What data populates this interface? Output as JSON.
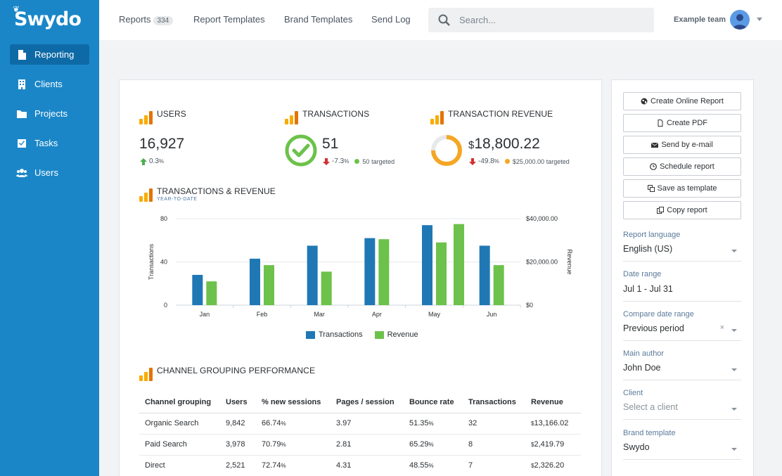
{
  "app": {
    "logo_text": "Swydo"
  },
  "sidebar": {
    "items": [
      {
        "label": "Reporting",
        "icon": "document-icon",
        "active": true
      },
      {
        "label": "Clients",
        "icon": "building-icon"
      },
      {
        "label": "Projects",
        "icon": "folder-icon"
      },
      {
        "label": "Tasks",
        "icon": "checkbox-icon"
      },
      {
        "label": "Users",
        "icon": "users-icon"
      }
    ]
  },
  "topbar": {
    "tabs": [
      {
        "label": "Reports",
        "badge": "334"
      },
      {
        "label": "Report Templates"
      },
      {
        "label": "Brand Templates"
      },
      {
        "label": "Send Log"
      }
    ],
    "search_placeholder": "Search...",
    "team_name": "Example team"
  },
  "kpis": {
    "users": {
      "title": "USERS",
      "value": "16,927",
      "change": "0.3",
      "change_unit": "%"
    },
    "transactions": {
      "title": "TRANSACTIONS",
      "value": "51",
      "change": "-7.3",
      "change_unit": "%",
      "target": "50",
      "target_label": "targeted"
    },
    "revenue": {
      "title": "TRANSACTION REVENUE",
      "currency": "$",
      "value": "18,800.22",
      "change": "-49.8",
      "change_unit": "%",
      "target": "$25,000.00",
      "target_label": "targeted",
      "progress": 0.75
    }
  },
  "colors": {
    "accent": "#1a86c8",
    "transactions": "#1f78b4",
    "revenue": "#6cc24a",
    "up": "#4caf50",
    "down": "#d32f2f",
    "target_dot_green": "#6cc24a",
    "target_dot_orange": "#f5a623"
  },
  "chart_data": {
    "type": "bar",
    "title": "TRANSACTIONS & REVENUE",
    "subtitle": "YEAR-TO-DATE",
    "categories": [
      "Jan",
      "Feb",
      "Mar",
      "Apr",
      "May",
      "Jun"
    ],
    "series": [
      {
        "name": "Transactions",
        "axis": "left",
        "values": [
          28,
          43,
          55,
          62,
          74,
          55
        ]
      },
      {
        "name": "Revenue",
        "axis": "right",
        "values": [
          11000,
          18500,
          15500,
          30500,
          29000,
          18500
        ]
      }
    ],
    "ylabel": "Transactions",
    "ylabel_right": "Revenue",
    "ylim": [
      0,
      80
    ],
    "ylim_right": [
      0,
      40000
    ],
    "yticks": [
      "80",
      "40",
      "0"
    ],
    "yticks_right": [
      "$40,000.00",
      "$20,000.00",
      "$0"
    ],
    "extra_revenue_bars": [
      37500
    ],
    "legend": "bottom",
    "grid": true
  },
  "table": {
    "title": "CHANNEL GROUPING PERFORMANCE",
    "columns": [
      "Channel grouping",
      "Users",
      "% new sessions",
      "Pages / session",
      "Bounce rate",
      "Transactions",
      "Revenue"
    ],
    "rows": [
      {
        "channel": "Organic Search",
        "users": "9,842",
        "new_sessions": "66.74",
        "pages": "3.97",
        "bounce": "51.35",
        "transactions": "32",
        "revenue": "13,166.02"
      },
      {
        "channel": "Paid Search",
        "users": "3,978",
        "new_sessions": "70.79",
        "pages": "2.81",
        "bounce": "65.29",
        "transactions": "8",
        "revenue": "2,419.79"
      },
      {
        "channel": "Direct",
        "users": "2,521",
        "new_sessions": "72.74",
        "pages": "4.31",
        "bounce": "48.55",
        "transactions": "7",
        "revenue": "2,326.20"
      }
    ],
    "pct_unit": "%",
    "currency": "$"
  },
  "panel": {
    "buttons": [
      {
        "label": "Create Online Report",
        "icon": "globe-icon"
      },
      {
        "label": "Create PDF",
        "icon": "pdf-icon"
      },
      {
        "label": "Send by e-mail",
        "icon": "envelope-icon"
      },
      {
        "label": "Schedule report",
        "icon": "clock-icon"
      },
      {
        "label": "Save as template",
        "icon": "copy-icon"
      },
      {
        "label": "Copy report",
        "icon": "duplicate-icon"
      }
    ],
    "fields": [
      {
        "label": "Report language",
        "value": "English (US)"
      },
      {
        "label": "Date range",
        "value": "Jul 1 - Jul 31"
      },
      {
        "label": "Compare date range",
        "value": "Previous period",
        "clear": "×"
      },
      {
        "label": "Main author",
        "value": "John Doe"
      },
      {
        "label": "Client",
        "value": "Select a client",
        "placeholder": true
      },
      {
        "label": "Brand template",
        "value": "Swydo"
      }
    ]
  }
}
